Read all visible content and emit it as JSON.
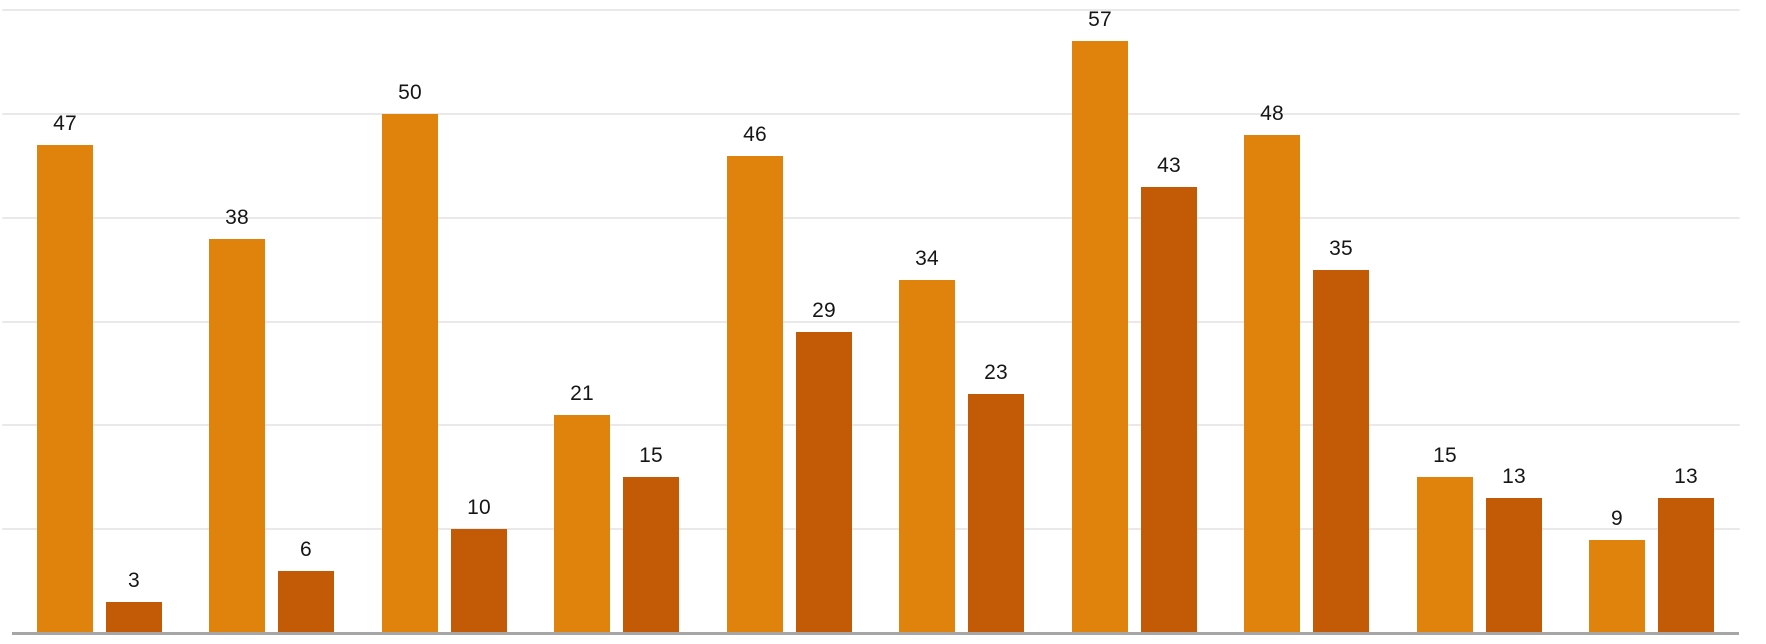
{
  "chart_data": {
    "type": "bar",
    "title": "",
    "subtitle": "",
    "legend": "none",
    "x_axis_tick_labels": "none",
    "y_axis_tick_labels": "none",
    "grid": "horizontal",
    "gridline_step": 10,
    "ylim": [
      0,
      61
    ],
    "groups": 10,
    "categories": [
      "",
      "",
      "",
      "",
      "",
      "",
      "",
      "",
      "",
      ""
    ],
    "series": [
      {
        "name": "series-1",
        "color": "#E0830D",
        "values": [
          47,
          38,
          50,
          21,
          46,
          34,
          57,
          48,
          15,
          9
        ]
      },
      {
        "name": "series-2",
        "color": "#C35B06",
        "values": [
          3,
          6,
          10,
          15,
          29,
          23,
          43,
          35,
          13,
          13
        ]
      }
    ],
    "value_labels_shown": true,
    "value_label_color": "#161616",
    "gridline_color": "#e9e9e9",
    "axis_line_color": "#a6a6a6",
    "background_color": "#ffffff"
  }
}
